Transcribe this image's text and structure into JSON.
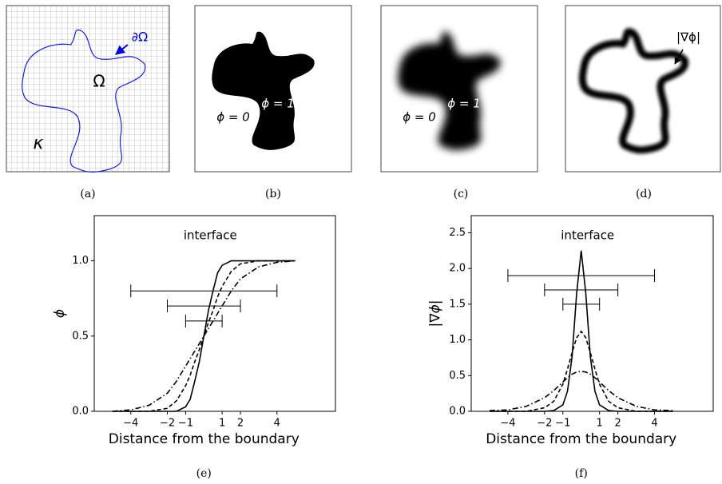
{
  "panels": [
    {
      "caption": "(a)",
      "boundary_label": "∂Ω",
      "domain_label": "Ω",
      "background_label": "κ"
    },
    {
      "caption": "(b)",
      "inside_label": "ϕ = 1",
      "outside_label": "ϕ = 0"
    },
    {
      "caption": "(c)",
      "inside_label": "ϕ = 1",
      "outside_label": "ϕ = 0"
    },
    {
      "caption": "(d)",
      "gradient_label": "|∇ϕ|"
    }
  ],
  "chart_data": [
    {
      "type": "line",
      "caption": "(e)",
      "xlabel": "Distance from the boundary",
      "ylabel": "ϕ",
      "annotation": "interface",
      "xlim": [
        -6,
        7.2
      ],
      "ylim": [
        0,
        1.3
      ],
      "xticks": [
        {
          "value": -4,
          "label": "−4"
        },
        {
          "value": -2,
          "label": "−2"
        },
        {
          "value": -1,
          "label": "−1"
        },
        1,
        2,
        4
      ],
      "yticks": [
        {
          "value": 0,
          "label": "0.0"
        },
        0.5,
        {
          "value": 1,
          "label": "1.0"
        }
      ],
      "x": [
        -5,
        -4,
        -3,
        -2,
        -1.5,
        -1,
        -0.75,
        -0.5,
        -0.25,
        0,
        0.25,
        0.5,
        0.75,
        1,
        1.5,
        2,
        3,
        4,
        5
      ],
      "series": [
        {
          "color": "#000000",
          "style": "solid",
          "values": [
            0,
            0,
            0,
            0,
            0,
            0.03,
            0.08,
            0.2,
            0.33,
            0.5,
            0.67,
            0.8,
            0.92,
            0.97,
            1,
            1,
            1,
            1,
            1
          ]
        },
        {
          "color": "#000000",
          "style": "dashed",
          "values": [
            0,
            0,
            0,
            0.02,
            0.07,
            0.17,
            0.24,
            0.33,
            0.41,
            0.5,
            0.59,
            0.67,
            0.76,
            0.83,
            0.93,
            0.98,
            1,
            1,
            1
          ]
        },
        {
          "color": "#000000",
          "style": "dashdot",
          "values": [
            0,
            0.01,
            0.04,
            0.12,
            0.2,
            0.3,
            0.35,
            0.4,
            0.45,
            0.5,
            0.55,
            0.6,
            0.65,
            0.7,
            0.8,
            0.88,
            0.96,
            0.99,
            1
          ]
        }
      ],
      "errorbars": [
        {
          "y": 0.8,
          "xmin": -4,
          "xmax": 4
        },
        {
          "y": 0.7,
          "xmin": -2,
          "xmax": 2
        },
        {
          "y": 0.6,
          "xmin": -1,
          "xmax": 1
        }
      ]
    },
    {
      "type": "line",
      "caption": "(f)",
      "xlabel": "Distance from the boundary",
      "ylabel": "|∇ϕ|",
      "annotation": "interface",
      "xlim": [
        -6,
        7.2
      ],
      "ylim": [
        0,
        2.74
      ],
      "xticks": [
        {
          "value": -4,
          "label": "−4"
        },
        {
          "value": -2,
          "label": "−2"
        },
        {
          "value": -1,
          "label": "−1"
        },
        1,
        2,
        4
      ],
      "yticks": [
        {
          "value": 0,
          "label": "0.0"
        },
        0.5,
        {
          "value": 1,
          "label": "1.0"
        },
        1.5,
        {
          "value": 2,
          "label": "2.0"
        },
        2.5
      ],
      "x": [
        -5,
        -4,
        -3,
        -2,
        -1.5,
        -1,
        -0.75,
        -0.5,
        -0.25,
        0,
        0.25,
        0.5,
        0.75,
        1,
        1.5,
        2,
        3,
        4,
        5
      ],
      "series": [
        {
          "color": "#000000",
          "style": "solid",
          "values": [
            0,
            0,
            0,
            0,
            0.01,
            0.09,
            0.28,
            0.76,
            1.65,
            2.25,
            1.65,
            0.76,
            0.28,
            0.09,
            0.01,
            0,
            0,
            0,
            0
          ]
        },
        {
          "color": "#000000",
          "style": "dashed",
          "values": [
            0,
            0,
            0,
            0.05,
            0.14,
            0.38,
            0.59,
            0.82,
            1.03,
            1.12,
            1.03,
            0.82,
            0.59,
            0.38,
            0.14,
            0.05,
            0,
            0,
            0
          ]
        },
        {
          "color": "#000000",
          "style": "dashdot",
          "values": [
            0.01,
            0.02,
            0.07,
            0.19,
            0.29,
            0.41,
            0.47,
            0.52,
            0.55,
            0.56,
            0.55,
            0.52,
            0.47,
            0.41,
            0.29,
            0.19,
            0.07,
            0.02,
            0.01
          ]
        }
      ],
      "errorbars": [
        {
          "y": 1.9,
          "xmin": -4,
          "xmax": 4
        },
        {
          "y": 1.7,
          "xmin": -2,
          "xmax": 2
        },
        {
          "y": 1.5,
          "xmin": -1,
          "xmax": 1
        }
      ]
    }
  ]
}
